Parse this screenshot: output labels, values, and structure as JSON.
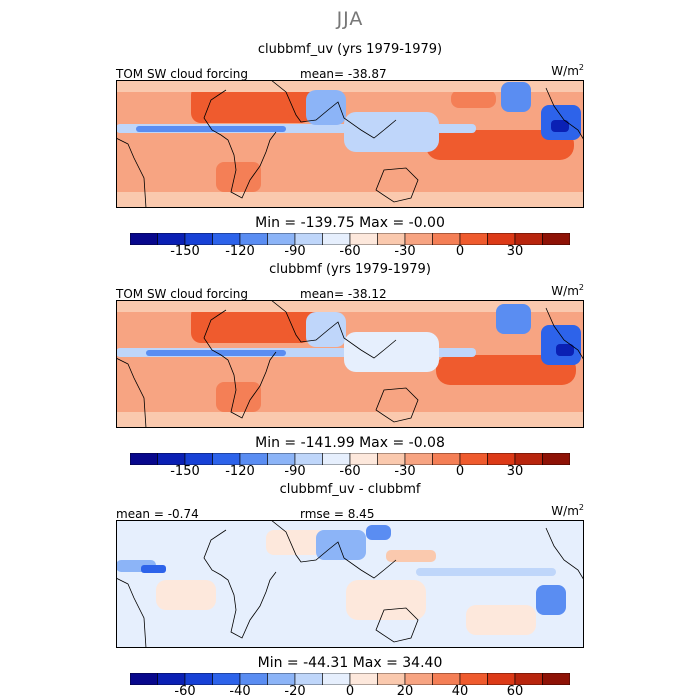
{
  "season": "JJA",
  "colors": {
    "scale": [
      "#08088c",
      "#0a20b4",
      "#1741d6",
      "#2d63ea",
      "#5a8df2",
      "#8cb4f7",
      "#bfd6fa",
      "#e6effd",
      "#fde8dc",
      "#fac9ae",
      "#f7a482",
      "#f47f56",
      "#ef5b2e",
      "#dc3a17",
      "#b8250d",
      "#8e1206"
    ],
    "land_outline": "#000000"
  },
  "panels": [
    {
      "title": "clubbmf_uv (yrs 1979-1979)",
      "left_label": "TOM SW cloud forcing",
      "center_label": "mean=  -38.87",
      "units": "W/m",
      "units_sup": "2",
      "minmax": "Min =  -139.75  Max =   -0.00",
      "colorbar_ticks": [
        "-150",
        "-120",
        "-90",
        "-60",
        "-30",
        "0",
        "30"
      ]
    },
    {
      "title": "clubbmf (yrs 1979-1979)",
      "left_label": "TOM SW cloud forcing",
      "center_label": "mean=  -38.12",
      "units": "W/m",
      "units_sup": "2",
      "minmax": "Min =  -141.99  Max =   -0.08",
      "colorbar_ticks": [
        "-150",
        "-120",
        "-90",
        "-60",
        "-30",
        "0",
        "30"
      ]
    },
    {
      "title": "clubbmf_uv - clubbmf",
      "left_label": "mean =   -0.74",
      "center_label": "rmse =    8.45",
      "units": "W/m",
      "units_sup": "2",
      "minmax": "Min =  -44.31  Max =   34.40",
      "colorbar_ticks": [
        "-60",
        "-40",
        "-20",
        "0",
        "20",
        "40",
        "60"
      ]
    }
  ],
  "chart_data": [
    {
      "type": "heatmap",
      "title": "clubbmf_uv (yrs 1979-1979)",
      "variable": "TOM SW cloud forcing",
      "units": "W/m2",
      "mean": -38.87,
      "min": -139.75,
      "max": -0.0,
      "colorbar_levels": [
        -150,
        -120,
        -90,
        -60,
        -30,
        0,
        30
      ],
      "colorbar_range": [
        -180,
        60
      ]
    },
    {
      "type": "heatmap",
      "title": "clubbmf (yrs 1979-1979)",
      "variable": "TOM SW cloud forcing",
      "units": "W/m2",
      "mean": -38.12,
      "min": -141.99,
      "max": -0.08,
      "colorbar_levels": [
        -150,
        -120,
        -90,
        -60,
        -30,
        0,
        30
      ],
      "colorbar_range": [
        -180,
        60
      ]
    },
    {
      "type": "heatmap",
      "title": "clubbmf_uv - clubbmf",
      "units": "W/m2",
      "mean": -0.74,
      "rmse": 8.45,
      "min": -44.31,
      "max": 34.4,
      "colorbar_levels": [
        -60,
        -40,
        -20,
        0,
        20,
        40,
        60
      ],
      "colorbar_range": [
        -80,
        80
      ]
    }
  ]
}
